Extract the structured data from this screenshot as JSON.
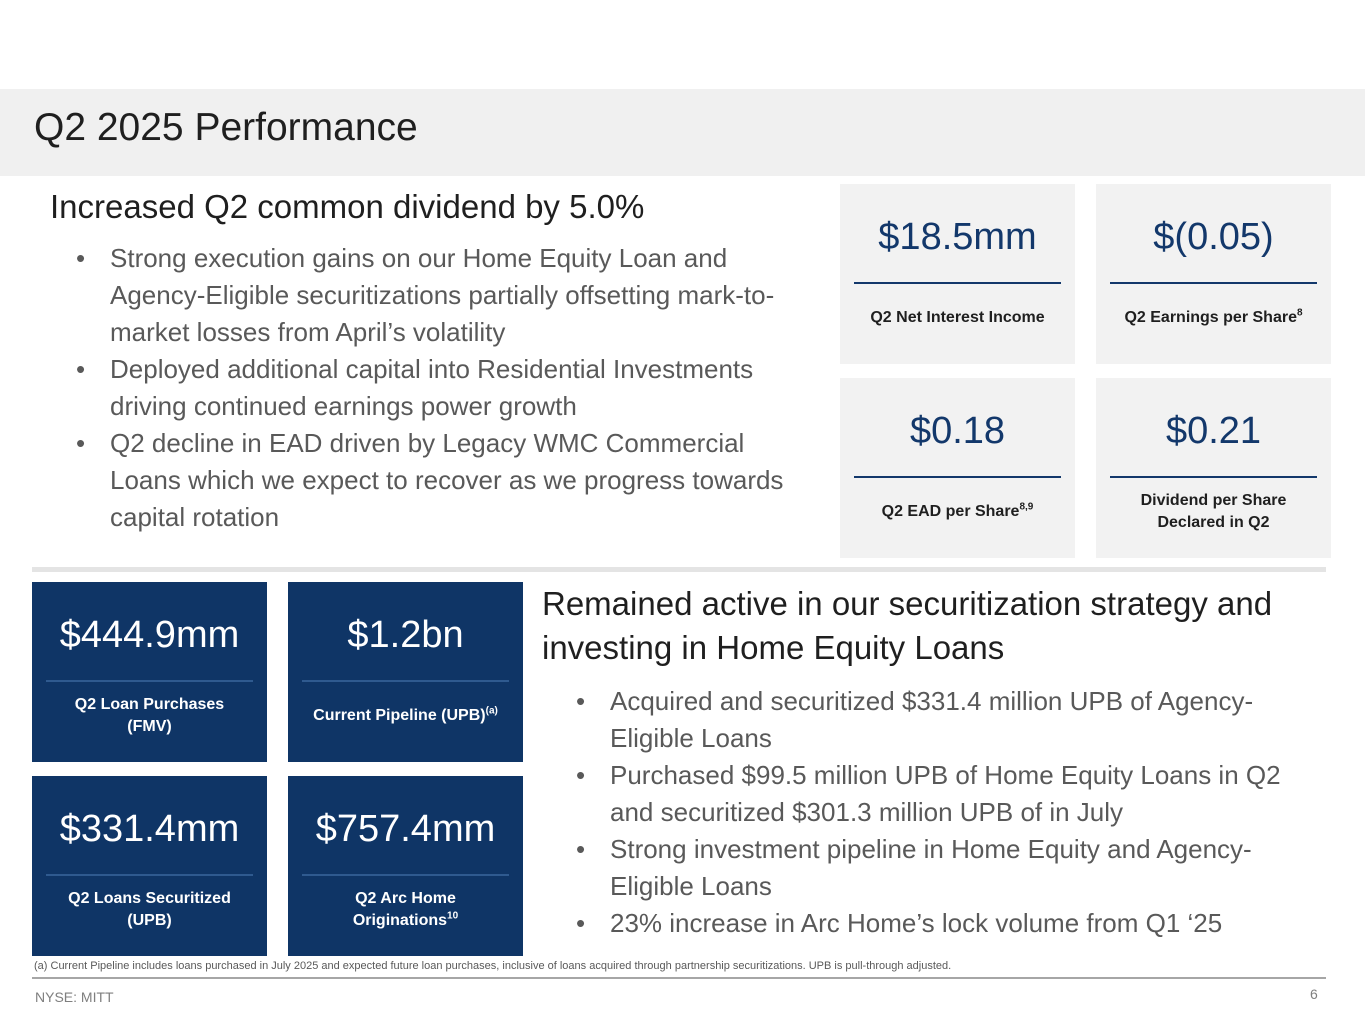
{
  "page": {
    "title": "Q2 2025 Performance",
    "ticker": "NYSE: MITT",
    "page_number": "6",
    "footnote": "(a) Current Pipeline includes loans purchased in July 2025 and expected future loan purchases, inclusive of loans acquired through partnership securitizations. UPB is pull-through adjusted."
  },
  "top_section": {
    "heading": "Increased Q2 common dividend by 5.0%",
    "bullets": [
      "Strong execution gains on our Home Equity Loan and Agency-Eligible securitizations partially offsetting mark-to-market losses from April’s volatility",
      "Deployed additional capital into Residential Investments driving continued earnings power growth",
      "Q2 decline in EAD driven by Legacy WMC Commercial Loans which we expect to recover as we progress towards capital rotation"
    ]
  },
  "top_kpis": [
    {
      "value": "$18.5mm",
      "label": "Q2 Net Interest Income",
      "sup": ""
    },
    {
      "value": "$(0.05)",
      "label": "Q2 Earnings per Share",
      "sup": "8"
    },
    {
      "value": "$0.18",
      "label": "Q2 EAD per Share",
      "sup": "8,9"
    },
    {
      "value": "$0.21",
      "label": "Dividend per Share Declared in Q2",
      "sup": ""
    }
  ],
  "bottom_kpis": [
    {
      "value": "$444.9mm",
      "label": "Q2 Loan Purchases (FMV)",
      "sup": ""
    },
    {
      "value": "$1.2bn",
      "label": "Current Pipeline (UPB)",
      "sup": "(a)"
    },
    {
      "value": "$331.4mm",
      "label": "Q2 Loans Securitized (UPB)",
      "sup": ""
    },
    {
      "value": "$757.4mm",
      "label": "Q2 Arc Home Originations",
      "sup": "10"
    }
  ],
  "bottom_section": {
    "heading": "Remained active in our securitization strategy and investing in Home Equity Loans",
    "bullets": [
      "Acquired and securitized $331.4 million UPB of Agency-Eligible Loans",
      "Purchased $99.5 million UPB of Home Equity Loans in Q2 and securitized $301.3 million UPB of in July",
      "Strong investment pipeline in Home Equity and Agency-Eligible Loans",
      "23% increase in Arc Home’s lock volume from Q1 ‘25"
    ]
  },
  "colors": {
    "navy": "#0f3566",
    "value_blue": "#13386b",
    "light_panel": "#f2f2f2",
    "title_band": "#f0f0f0"
  }
}
